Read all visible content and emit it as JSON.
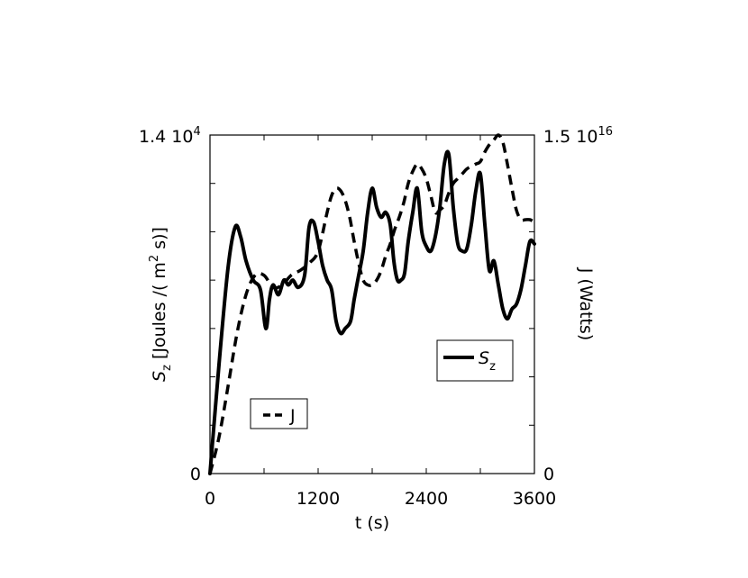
{
  "chart_data": {
    "type": "line",
    "xlabel": "t (s)",
    "xlim": [
      0,
      3600
    ],
    "xticks": [
      "0",
      "1200",
      "2400",
      "3600"
    ],
    "left_axis": {
      "label_main": "S",
      "label_sub": "z",
      "label_rest": " [Joules /( m",
      "label_sup": "2",
      "label_end": " s)]",
      "ylim": [
        0,
        14000
      ],
      "tick_top_mantissa": "1.4 10",
      "tick_top_exp": "4",
      "tick_bottom": "0"
    },
    "right_axis": {
      "label": "J (Watts)",
      "ylim": [
        0,
        1.5e+16
      ],
      "tick_top_mantissa": "1.5 10",
      "tick_top_exp": "16",
      "tick_bottom": "0"
    },
    "series": [
      {
        "name": "S",
        "name_sub": "z",
        "axis": "left",
        "style": "solid",
        "x": [
          0,
          100,
          200,
          280,
          340,
          400,
          480,
          560,
          620,
          660,
          700,
          760,
          820,
          870,
          920,
          980,
          1050,
          1100,
          1150,
          1200,
          1250,
          1300,
          1350,
          1400,
          1450,
          1500,
          1560,
          1600,
          1650,
          1700,
          1750,
          1800,
          1850,
          1900,
          1950,
          2000,
          2040,
          2080,
          2120,
          2160,
          2200,
          2250,
          2300,
          2350,
          2400,
          2450,
          2500,
          2550,
          2600,
          2650,
          2700,
          2750,
          2800,
          2850,
          2900,
          2950,
          3000,
          3050,
          3100,
          3150,
          3200,
          3250,
          3300,
          3350,
          3400,
          3450,
          3500,
          3550,
          3600
        ],
        "y": [
          0,
          4500,
          8500,
          10200,
          9800,
          8800,
          8000,
          7600,
          6000,
          7200,
          7800,
          7400,
          8000,
          7800,
          8000,
          7700,
          8200,
          10200,
          10400,
          9600,
          8600,
          8000,
          7600,
          6300,
          5800,
          6000,
          6300,
          7200,
          8200,
          9200,
          10800,
          11800,
          11000,
          10600,
          10800,
          10300,
          8800,
          8000,
          8000,
          8300,
          9600,
          10800,
          11800,
          10000,
          9400,
          9200,
          9800,
          11000,
          12800,
          13200,
          11000,
          9500,
          9200,
          9300,
          10300,
          11700,
          12400,
          10300,
          8400,
          8800,
          7800,
          6800,
          6400,
          6800,
          7000,
          7600,
          8600,
          9600,
          9500
        ]
      },
      {
        "name": "J",
        "axis": "left",
        "style": "dashed",
        "x": [
          0,
          100,
          200,
          300,
          400,
          500,
          600,
          700,
          800,
          900,
          1000,
          1100,
          1200,
          1300,
          1350,
          1400,
          1450,
          1500,
          1550,
          1600,
          1650,
          1700,
          1750,
          1800,
          1850,
          1900,
          1950,
          2000,
          2050,
          2100,
          2150,
          2200,
          2250,
          2300,
          2350,
          2400,
          2450,
          2500,
          2550,
          2600,
          2650,
          2700,
          2750,
          2800,
          2850,
          2900,
          2950,
          3000,
          3050,
          3100,
          3150,
          3200,
          3250,
          3300,
          3350,
          3400,
          3450,
          3500,
          3550,
          3600
        ],
        "y": [
          0,
          1500,
          3600,
          5800,
          7400,
          8200,
          8200,
          7700,
          7800,
          8200,
          8400,
          8700,
          9200,
          10800,
          11500,
          11800,
          11700,
          11300,
          10600,
          9600,
          8700,
          8000,
          7800,
          7800,
          8000,
          8400,
          9000,
          9500,
          10100,
          10600,
          11200,
          12000,
          12500,
          12800,
          12600,
          12200,
          11500,
          10800,
          10900,
          11100,
          11600,
          12000,
          12200,
          12400,
          12600,
          12700,
          12800,
          12900,
          13300,
          13600,
          13800,
          14000,
          13700,
          12800,
          11800,
          10900,
          10500,
          10500,
          10500,
          10400
        ]
      }
    ]
  }
}
